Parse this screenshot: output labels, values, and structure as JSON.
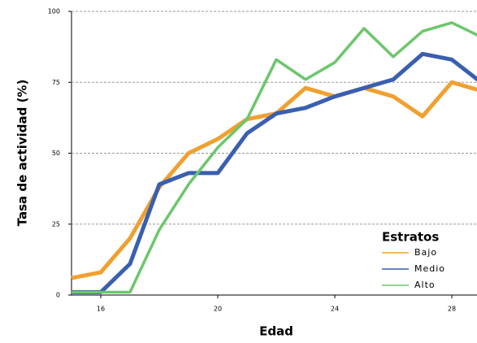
{
  "chart_data": {
    "type": "line",
    "x_label": "Edad",
    "y_label": "Tasa de actividad (%)",
    "x": [
      15,
      16,
      17,
      18,
      19,
      20,
      21,
      22,
      23,
      24,
      25,
      26,
      27,
      28,
      29
    ],
    "series": [
      {
        "name": "Bajo",
        "color": "#f0a030",
        "values": [
          6,
          8,
          20,
          38,
          50,
          55,
          62,
          64,
          73,
          70,
          73,
          70,
          63,
          75,
          72
        ]
      },
      {
        "name": "Medio",
        "color": "#3a5fb0",
        "values": [
          1,
          1,
          11,
          39,
          43,
          43,
          57,
          64,
          66,
          70,
          73,
          76,
          85,
          83,
          75
        ]
      },
      {
        "name": "Alto",
        "color": "#6cc66c",
        "values": [
          1,
          1,
          1,
          23,
          39,
          52,
          62,
          83,
          76,
          82,
          94,
          84,
          93,
          96,
          91
        ]
      }
    ],
    "xlim": [
      15,
      30
    ],
    "ylim": [
      0,
      100
    ],
    "xticks": [
      16,
      20,
      24,
      28
    ],
    "yticks": [
      0,
      25,
      50,
      75,
      100
    ],
    "grid": true,
    "legend_title": "Estratos",
    "legend_position": "lower right"
  }
}
